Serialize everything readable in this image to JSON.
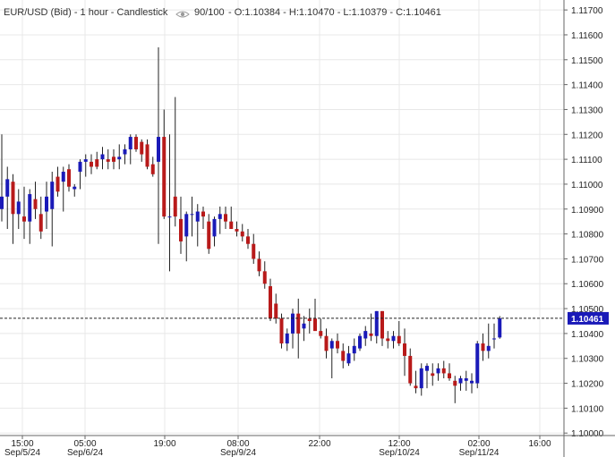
{
  "header": {
    "symbol": "EUR/USD (Bid) - 1 hour - Candlestick",
    "eye_icon": "eye-icon",
    "visible_range": "90/100",
    "ohlc": "- O:1.10384 - H:1.10470 - L:1.10379 - C:1.10461"
  },
  "chart_data": {
    "type": "candlestick",
    "title": "EUR/USD (Bid) - 1 hour - Candlestick",
    "ylim": [
      1.0999,
      1.1174
    ],
    "y_ticks": [
      "1.11700",
      "1.11600",
      "1.11500",
      "1.11400",
      "1.11300",
      "1.11200",
      "1.11100",
      "1.11000",
      "1.10900",
      "1.10800",
      "1.10700",
      "1.10600",
      "1.10500",
      "1.10400",
      "1.10300",
      "1.10200",
      "1.10100",
      "1.10000"
    ],
    "x_ticks": [
      {
        "time": "15:00",
        "date": "Sep/5/24"
      },
      {
        "time": "05:00",
        "date": "Sep/6/24"
      },
      {
        "time": "19:00",
        "date": ""
      },
      {
        "time": "08:00",
        "date": "Sep/9/24"
      },
      {
        "time": "22:00",
        "date": ""
      },
      {
        "time": "12:00",
        "date": "Sep/10/24"
      },
      {
        "time": "02:00",
        "date": "Sep/11/24"
      },
      {
        "time": "16:00",
        "date": ""
      }
    ],
    "last_price": "1.10461",
    "up_color": "#1a1ab8",
    "down_color": "#b81a1a",
    "grid": true,
    "candles": [
      [
        1.109,
        1.112,
        1.1085,
        1.1095
      ],
      [
        1.1095,
        1.1107,
        1.1082,
        1.1102
      ],
      [
        1.1101,
        1.1104,
        1.1076,
        1.1088
      ],
      [
        1.1088,
        1.1098,
        1.1082,
        1.1093
      ],
      [
        1.1087,
        1.1099,
        1.1078,
        1.1085
      ],
      [
        1.1085,
        1.1098,
        1.1076,
        1.1096
      ],
      [
        1.1094,
        1.1101,
        1.1086,
        1.109
      ],
      [
        1.1088,
        1.1095,
        1.1078,
        1.1081
      ],
      [
        1.1089,
        1.1101,
        1.1082,
        1.1095
      ],
      [
        1.109,
        1.1105,
        1.1075,
        1.1101
      ],
      [
        1.1103,
        1.1107,
        1.1095,
        1.1097
      ],
      [
        1.1101,
        1.1107,
        1.1089,
        1.1105
      ],
      [
        1.1106,
        1.1108,
        1.1097,
        1.1099
      ],
      [
        1.1098,
        1.11,
        1.1095,
        1.1099
      ],
      [
        1.1105,
        1.111,
        1.1098,
        1.1109
      ],
      [
        1.1109,
        1.1112,
        1.1103,
        1.111
      ],
      [
        1.1109,
        1.1112,
        1.1104,
        1.1107
      ],
      [
        1.111,
        1.1113,
        1.1106,
        1.1107
      ],
      [
        1.111,
        1.1115,
        1.1106,
        1.1112
      ],
      [
        1.111,
        1.1114,
        1.1106,
        1.1109
      ],
      [
        1.1111,
        1.1114,
        1.1106,
        1.1109
      ],
      [
        1.111,
        1.1116,
        1.1106,
        1.1111
      ],
      [
        1.1112,
        1.1116,
        1.1108,
        1.1114
      ],
      [
        1.1114,
        1.112,
        1.1108,
        1.1119
      ],
      [
        1.1119,
        1.112,
        1.1113,
        1.1114
      ],
      [
        1.1117,
        1.1118,
        1.1109,
        1.1112
      ],
      [
        1.1116,
        1.1118,
        1.1106,
        1.1107
      ],
      [
        1.1108,
        1.1111,
        1.1103,
        1.1104
      ],
      [
        1.1109,
        1.1155,
        1.1076,
        1.1119
      ],
      [
        1.1119,
        1.113,
        1.1086,
        1.1087
      ],
      [
        1.1087,
        1.112,
        1.1065,
        1.1087
      ],
      [
        1.1095,
        1.1135,
        1.1083,
        1.1087
      ],
      [
        1.1086,
        1.1095,
        1.1072,
        1.1077
      ],
      [
        1.1079,
        1.1089,
        1.1069,
        1.1088
      ],
      [
        1.1088,
        1.1095,
        1.1079,
        1.1088
      ],
      [
        1.1085,
        1.1092,
        1.1075,
        1.1089
      ],
      [
        1.1089,
        1.1091,
        1.1082,
        1.1087
      ],
      [
        1.1085,
        1.1088,
        1.1072,
        1.1074
      ],
      [
        1.1079,
        1.1087,
        1.1075,
        1.1086
      ],
      [
        1.1086,
        1.1091,
        1.108,
        1.1088
      ],
      [
        1.1088,
        1.1091,
        1.1082,
        1.1085
      ],
      [
        1.1085,
        1.1091,
        1.1082,
        1.1082
      ],
      [
        1.1082,
        1.1085,
        1.1079,
        1.1081
      ],
      [
        1.1081,
        1.1084,
        1.1077,
        1.1079
      ],
      [
        1.1079,
        1.1082,
        1.1074,
        1.1076
      ],
      [
        1.1076,
        1.108,
        1.1068,
        1.107
      ],
      [
        1.107,
        1.1073,
        1.1063,
        1.1065
      ],
      [
        1.1065,
        1.1069,
        1.1058,
        1.106
      ],
      [
        1.1059,
        1.1062,
        1.1045,
        1.1046
      ],
      [
        1.1052,
        1.1056,
        1.1044,
        1.1046
      ],
      [
        1.1046,
        1.1048,
        1.1034,
        1.1036
      ],
      [
        1.1036,
        1.1042,
        1.1033,
        1.104
      ],
      [
        1.104,
        1.105,
        1.1034,
        1.1048
      ],
      [
        1.1048,
        1.1054,
        1.103,
        1.104
      ],
      [
        1.1042,
        1.1047,
        1.1037,
        1.1044
      ],
      [
        1.1046,
        1.105,
        1.104,
        1.1045
      ],
      [
        1.1046,
        1.1054,
        1.1042,
        1.1041
      ],
      [
        1.1041,
        1.1046,
        1.1038,
        1.1039
      ],
      [
        1.1039,
        1.1042,
        1.103,
        1.1033
      ],
      [
        1.1034,
        1.1038,
        1.1022,
        1.1037
      ],
      [
        1.1037,
        1.104,
        1.1032,
        1.1034
      ],
      [
        1.1033,
        1.1036,
        1.1026,
        1.1029
      ],
      [
        1.1028,
        1.1035,
        1.1027,
        1.1032
      ],
      [
        1.1032,
        1.1038,
        1.1029,
        1.1035
      ],
      [
        1.1034,
        1.104,
        1.1033,
        1.1039
      ],
      [
        1.1038,
        1.1043,
        1.1035,
        1.1041
      ],
      [
        1.104,
        1.1048,
        1.1037,
        1.1039
      ],
      [
        1.1039,
        1.1049,
        1.1036,
        1.1049
      ],
      [
        1.1049,
        1.1049,
        1.1035,
        1.1038
      ],
      [
        1.1038,
        1.1041,
        1.1034,
        1.1037
      ],
      [
        1.1037,
        1.1041,
        1.1034,
        1.1039
      ],
      [
        1.1039,
        1.1045,
        1.1035,
        1.1036
      ],
      [
        1.1036,
        1.1042,
        1.1023,
        1.1031
      ],
      [
        1.1031,
        1.1034,
        1.1019,
        1.102
      ],
      [
        1.1019,
        1.1025,
        1.1016,
        1.1018
      ],
      [
        1.1018,
        1.1028,
        1.1015,
        1.1026
      ],
      [
        1.1025,
        1.1028,
        1.1018,
        1.1027
      ],
      [
        1.1024,
        1.1028,
        1.1019,
        1.1023
      ],
      [
        1.1024,
        1.1028,
        1.1021,
        1.1026
      ],
      [
        1.1026,
        1.1029,
        1.1022,
        1.1024
      ],
      [
        1.1024,
        1.1028,
        1.1021,
        1.1022
      ],
      [
        1.1021,
        1.1023,
        1.1012,
        1.1019
      ],
      [
        1.102,
        1.1023,
        1.1017,
        1.1022
      ],
      [
        1.1021,
        1.1025,
        1.1017,
        1.1022
      ],
      [
        1.102,
        1.1024,
        1.1016,
        1.1021
      ],
      [
        1.102,
        1.1037,
        1.1018,
        1.1036
      ],
      [
        1.1036,
        1.104,
        1.1029,
        1.1033
      ],
      [
        1.1033,
        1.1044,
        1.103,
        1.1035
      ],
      [
        1.1038,
        1.1044,
        1.1034,
        1.1038
      ],
      [
        1.10384,
        1.1047,
        1.10379,
        1.10461
      ]
    ]
  }
}
